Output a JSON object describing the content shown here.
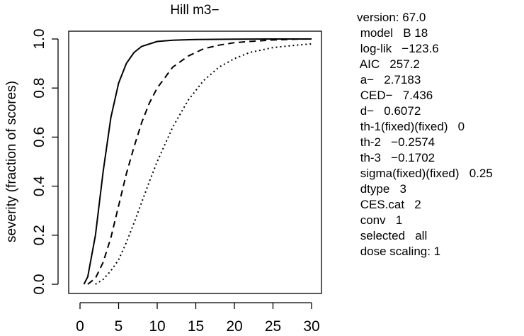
{
  "chart_data": {
    "type": "line",
    "title": "Hill m3−",
    "xlabel": "",
    "ylabel": "severity (fraction of scores)",
    "xlim": [
      0,
      30
    ],
    "ylim": [
      0,
      1
    ],
    "x_ticks": [
      "0",
      "5",
      "10",
      "15",
      "20",
      "25",
      "30"
    ],
    "y_ticks": [
      "0.0",
      "0.2",
      "0.4",
      "0.6",
      "0.8",
      "1.0"
    ],
    "grid": false,
    "legend": "none",
    "series": [
      {
        "line_style": "solid",
        "x": [
          0.5,
          1,
          2,
          3,
          4,
          5,
          6,
          7,
          8,
          10,
          12,
          15,
          20,
          25,
          30
        ],
        "y": [
          0.0,
          0.03,
          0.2,
          0.46,
          0.68,
          0.82,
          0.9,
          0.945,
          0.97,
          0.99,
          0.995,
          0.998,
          0.999,
          1.0,
          1.0
        ]
      },
      {
        "line_style": "dashed",
        "x": [
          1,
          2,
          3,
          4,
          5,
          6,
          7,
          8,
          9,
          10,
          12,
          14,
          16,
          18,
          20,
          22,
          25,
          28,
          30
        ],
        "y": [
          0.0,
          0.025,
          0.09,
          0.19,
          0.32,
          0.45,
          0.56,
          0.66,
          0.74,
          0.8,
          0.885,
          0.93,
          0.96,
          0.975,
          0.985,
          0.99,
          0.996,
          0.999,
          1.0
        ]
      },
      {
        "line_style": "dotted",
        "x": [
          2,
          3,
          4,
          5,
          6,
          7,
          8,
          9,
          10,
          12,
          14,
          16,
          18,
          20,
          22,
          25,
          28,
          30
        ],
        "y": [
          0.0,
          0.02,
          0.055,
          0.1,
          0.17,
          0.25,
          0.335,
          0.42,
          0.5,
          0.64,
          0.75,
          0.83,
          0.885,
          0.92,
          0.945,
          0.965,
          0.975,
          0.98
        ]
      }
    ],
    "info_lines": [
      "version: 67.0",
      " model   B 18",
      " log-lik   −123.6",
      " AIC   257.2",
      " a−   2.7183",
      " CED−   7.436",
      " d−   0.6072",
      " th-1(fixed)(fixed)   0",
      " th-2   −0.2574",
      " th-3   −0.1702",
      " sigma(fixed)(fixed)   0.25",
      " dtype   3",
      " CES.cat   2",
      " conv   1",
      " selected   all",
      " dose scaling: 1"
    ]
  }
}
